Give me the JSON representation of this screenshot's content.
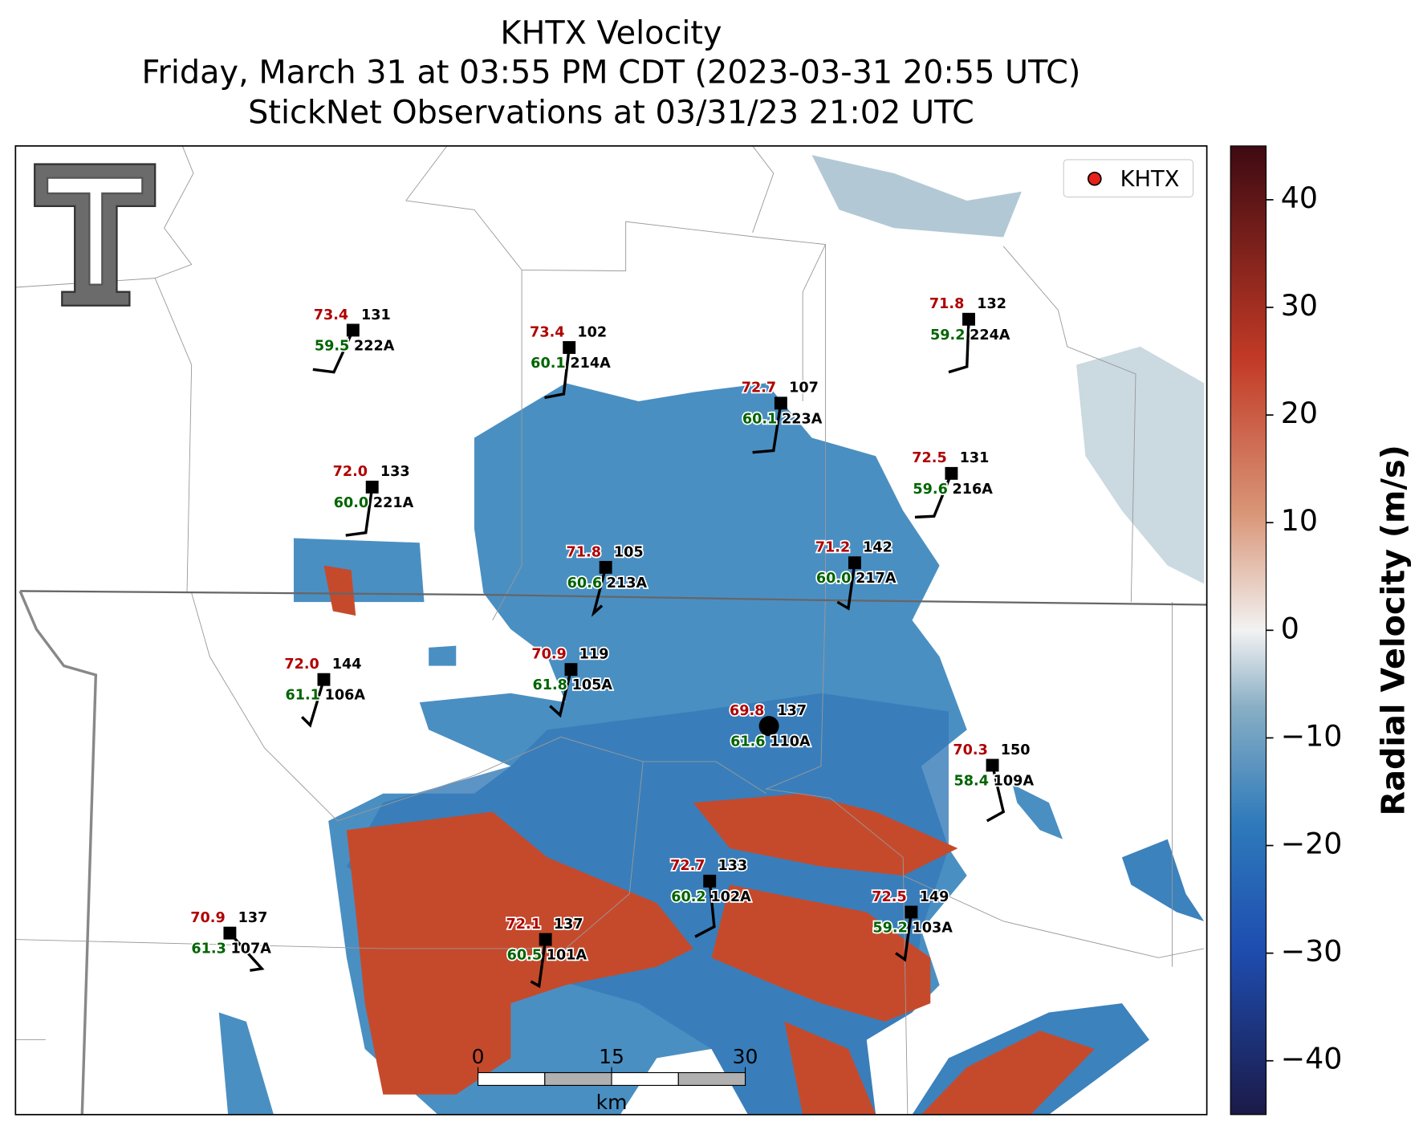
{
  "header": {
    "title_lines": [
      "KHTX Velocity",
      "Friday, March 31 at 03:55 PM CDT (2023-03-31 20:55 UTC)",
      "StickNet Observations at 03/31/23 21:02 UTC"
    ]
  },
  "map": {
    "legend": {
      "label": "KHTX",
      "color": "#e8201a"
    },
    "stations": [
      {
        "temp": "73.4",
        "count": "131",
        "dewpoint": "59.5",
        "id": "222A"
      },
      {
        "temp": "73.4",
        "count": "102",
        "dewpoint": "60.1",
        "id": "214A"
      },
      {
        "temp": "72.7",
        "count": "107",
        "dewpoint": "60.1",
        "id": "223A"
      },
      {
        "temp": "71.8",
        "count": "132",
        "dewpoint": "59.2",
        "id": "224A"
      },
      {
        "temp": "72.0",
        "count": "133",
        "dewpoint": "60.0",
        "id": "221A"
      },
      {
        "temp": "72.5",
        "count": "131",
        "dewpoint": "59.6",
        "id": "216A"
      },
      {
        "temp": "71.8",
        "count": "105",
        "dewpoint": "60.6",
        "id": "213A"
      },
      {
        "temp": "71.2",
        "count": "142",
        "dewpoint": "60.0",
        "id": "217A"
      },
      {
        "temp": "72.0",
        "count": "144",
        "dewpoint": "61.1",
        "id": "106A"
      },
      {
        "temp": "70.9",
        "count": "119",
        "dewpoint": "61.8",
        "id": "105A"
      },
      {
        "temp": "69.8",
        "count": "137",
        "dewpoint": "61.6",
        "id": "110A"
      },
      {
        "temp": "70.3",
        "count": "150",
        "dewpoint": "58.4",
        "id": "109A"
      },
      {
        "temp": "72.7",
        "count": "133",
        "dewpoint": "60.2",
        "id": "102A"
      },
      {
        "temp": "72.5",
        "count": "149",
        "dewpoint": "59.2",
        "id": "103A"
      },
      {
        "temp": "70.9",
        "count": "137",
        "dewpoint": "61.3",
        "id": "107A"
      },
      {
        "temp": "72.1",
        "count": "137",
        "dewpoint": "60.5",
        "id": "101A"
      }
    ],
    "scale_bar": {
      "ticks": [
        0,
        15,
        30
      ],
      "unit": "km"
    }
  },
  "colorbar": {
    "label": "Radial Velocity (m/s)",
    "lim": [
      -45,
      45
    ],
    "ticks": [
      {
        "value": -40,
        "label": "−40"
      },
      {
        "value": -30,
        "label": "−30"
      },
      {
        "value": -20,
        "label": "−20"
      },
      {
        "value": -10,
        "label": "−10"
      },
      0,
      10,
      20,
      30,
      40
    ]
  }
}
